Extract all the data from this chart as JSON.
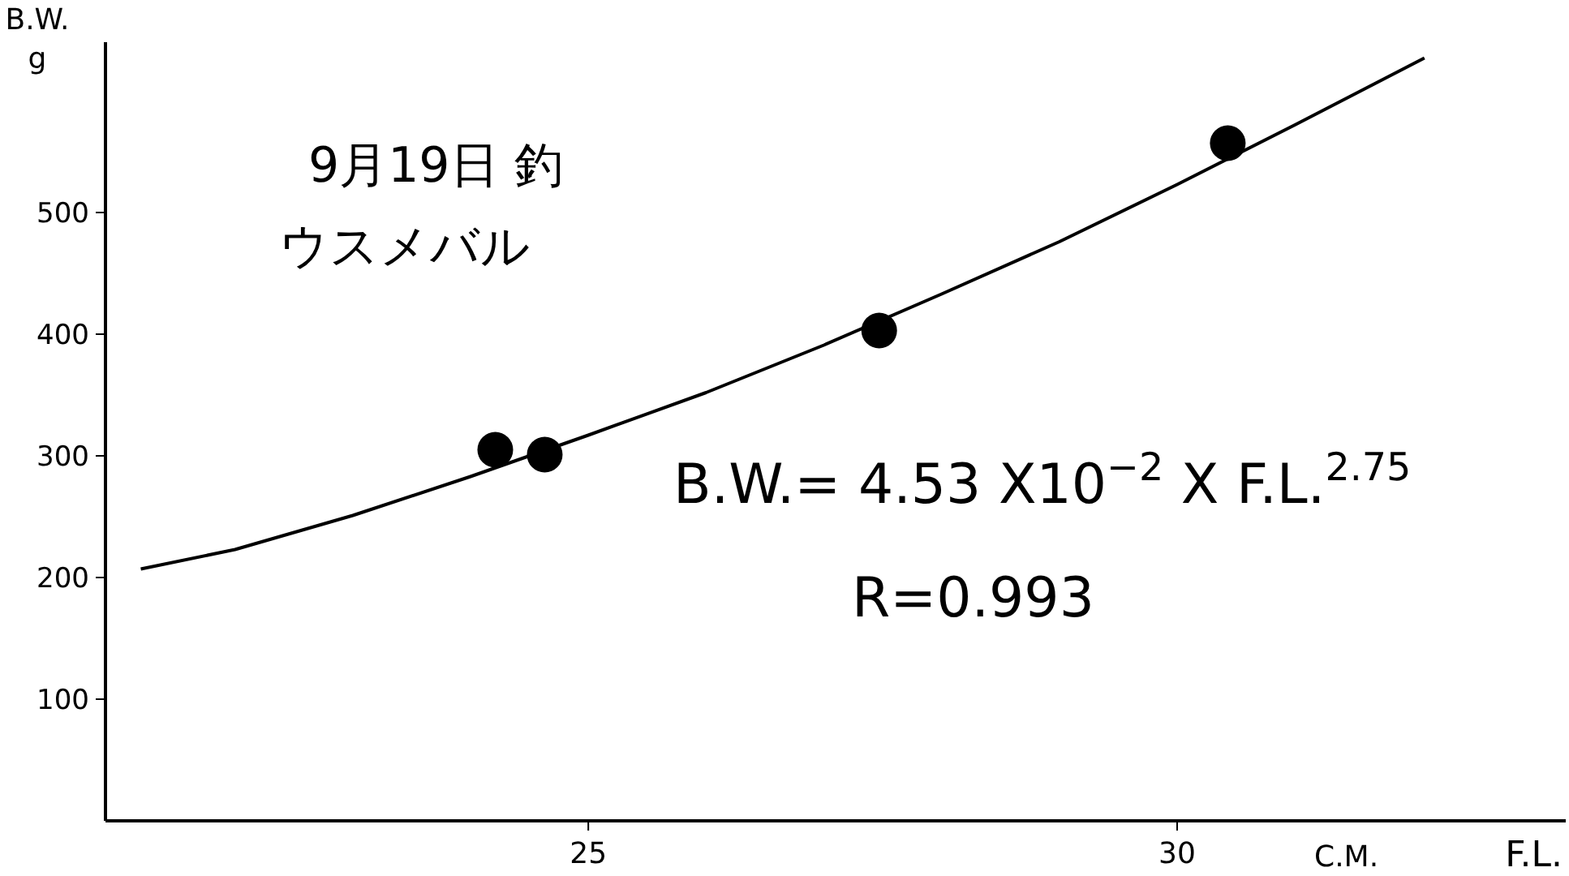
{
  "chart_data": {
    "type": "scatter",
    "title": "9月19日 釣",
    "subtitle": "ウスメバル",
    "xlabel": "F.L.",
    "ylabel": "B.W.\ng",
    "xlim": [
      20.9,
      33.3
    ],
    "ylim": [
      0,
      640
    ],
    "xticks": [
      25,
      30
    ],
    "yticks": [
      100,
      200,
      300,
      400,
      500
    ],
    "series": [
      {
        "type": "line",
        "marker": "none",
        "color": "#000000",
        "x": [
          21.2,
          22,
          23,
          24,
          25,
          26,
          27,
          28,
          29,
          30,
          31,
          32.1
        ],
        "values": [
          207,
          223,
          251,
          283,
          317,
          352,
          391,
          433,
          476,
          523,
          572,
          627
        ]
      },
      {
        "color": "#000000",
        "x": [
          24.21,
          24.63,
          27.47,
          30.43
        ],
        "values": [
          305,
          301,
          403,
          557
        ]
      }
    ],
    "annotations": [
      "C.M.",
      "B.W.= 4.53 X10$^{−2}$ X F.L.$^{2.75}$",
      "R=0.993"
    ],
    "marker": "circle",
    "line_style": "solid",
    "grid": false
  }
}
